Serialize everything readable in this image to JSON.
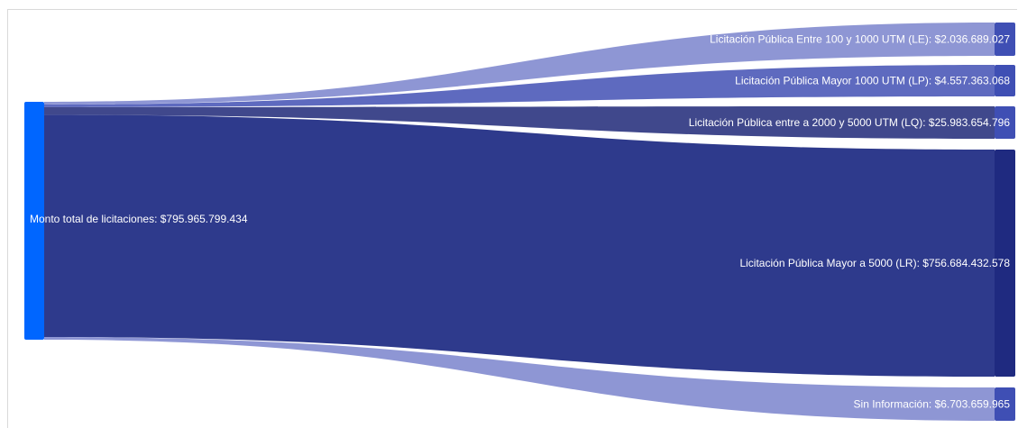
{
  "chart_data": {
    "type": "sankey",
    "source": {
      "label": "Monto total de licitaciones: $795.965.799.434",
      "value": 795965799434
    },
    "targets": [
      {
        "label": "Licitación Pública Entre 100 y 1000 UTM (LE): $2.036.689.027",
        "value": 2036689027
      },
      {
        "label": "Licitación Pública Mayor 1000 UTM (LP): $4.557.363.068",
        "value": 4557363068
      },
      {
        "label": "Licitación Pública entre a 2000 y 5000 UTM (LQ): $25.983.654.796",
        "value": 25983654796
      },
      {
        "label": "Licitación Pública Mayor a 5000 (LR): $756.684.432.578",
        "value": 756684432578
      },
      {
        "label": "Sin Información: $6.703.659.965",
        "value": 6703659965
      }
    ],
    "colors": {
      "source_node": "#0066ff",
      "target_node": "#1f2a80",
      "small_node": "#3f4fb4",
      "main_flow": "#2e3a8c",
      "light_flow": "#7a84cc",
      "mid_flow": "#4c5ab8",
      "dark_flow": "#1f2878"
    }
  }
}
